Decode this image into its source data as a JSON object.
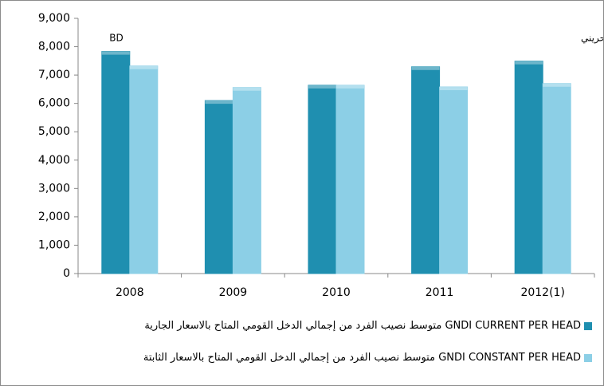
{
  "chart_data": {
    "type": "bar",
    "categories": [
      "2008",
      "2009",
      "2010",
      "2011",
      "2012(1)"
    ],
    "series": [
      {
        "name": "متوسط نصيب الفرد من إجمالي  الدخل القومي المتاح بالاسعار الجارية  GNDI CURRENT PER HEAD",
        "color": "#1f8fb0",
        "values": [
          7830,
          6100,
          6640,
          7290,
          7490
        ]
      },
      {
        "name": "متوسط نصيب الفرد من إجمالي  الدخل القومي المتاح بالاسعار الثابتة  GNDI CONSTANT PER HEAD",
        "color": "#8ccfe6",
        "values": [
          7320,
          6560,
          6640,
          6580,
          6700
        ]
      }
    ],
    "annotations": [
      "BD",
      "دينار بحريني"
    ],
    "ylim": [
      0,
      9000
    ],
    "yticks": [
      0,
      {
        "value": 1000,
        "label": "1,000"
      },
      {
        "value": 2000,
        "label": "2,000"
      },
      {
        "value": 3000,
        "label": "3,000"
      },
      {
        "value": 4000,
        "label": "4,000"
      },
      {
        "value": 5000,
        "label": "5,000"
      },
      {
        "value": 6000,
        "label": "6,000"
      },
      {
        "value": 7000,
        "label": "7,000"
      },
      {
        "value": 8000,
        "label": "8,000"
      },
      {
        "value": 9000,
        "label": "9,000"
      }
    ],
    "grid": false
  }
}
